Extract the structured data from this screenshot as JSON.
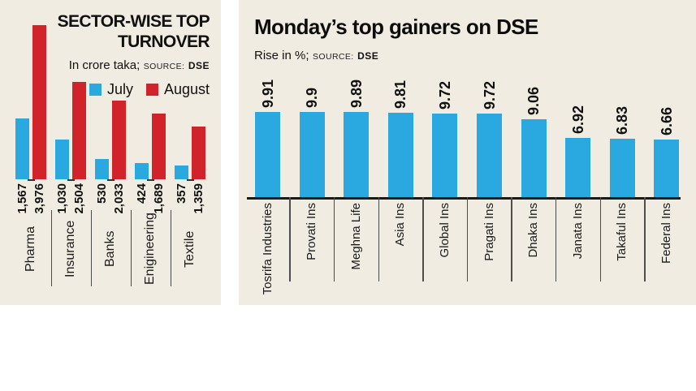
{
  "colors": {
    "page_background": "#ffffff",
    "panel_background": "#f0ece2",
    "july_blue": "#29a9e0",
    "august_red": "#d1232a",
    "text": "#111111",
    "separator": "#4d4d4d",
    "baseline": "#1a1a1a"
  },
  "left_chart": {
    "title_line1": "SECTOR-WISE TOP",
    "title_line2": "TURNOVER",
    "unit_label": "In crore taka;",
    "source_label": "SOURCE:",
    "source_value": "DSE"
  },
  "right_chart": {
    "title": "Monday’s top gainers on DSE",
    "unit_label": "Rise in %;",
    "source_label": "SOURCE:",
    "source_value": "DSE"
  },
  "chart_data": [
    {
      "type": "bar",
      "title": "SECTOR-WISE TOP TURNOVER",
      "subtitle": "In crore taka; SOURCE: DSE",
      "legend_position": "top-right",
      "grid": false,
      "ylim": [
        0,
        4000
      ],
      "categories": [
        "Pharma",
        "Insurance",
        "Banks",
        "Enigineering",
        "Textile"
      ],
      "series": [
        {
          "name": "July",
          "color": "#29a9e0",
          "values": [
            1567,
            1030,
            530,
            424,
            357
          ],
          "labels": [
            "1,567",
            "1,030",
            "530",
            "424",
            "357"
          ]
        },
        {
          "name": "August",
          "color": "#d1232a",
          "values": [
            3976,
            2504,
            2033,
            1689,
            1359
          ],
          "labels": [
            "3,976",
            "2,504",
            "2,033",
            "1,689",
            "1,359"
          ]
        }
      ]
    },
    {
      "type": "bar",
      "title": "Monday’s top gainers on DSE",
      "subtitle": "Rise in %; SOURCE: DSE",
      "grid": false,
      "ylim": [
        0,
        10
      ],
      "bar_color": "#29a9e0",
      "categories": [
        "Tosrifa Industries",
        "Provati Ins",
        "Meghna Life",
        "Asia Ins",
        "Global Ins",
        "Pragati Ins",
        "Dhaka Ins",
        "Janata Ins",
        "Takaful Ins",
        "Federal Ins"
      ],
      "values": [
        9.91,
        9.9,
        9.89,
        9.81,
        9.72,
        9.72,
        9.06,
        6.92,
        6.83,
        6.66
      ],
      "value_labels": [
        "9.91",
        "9.9",
        "9.89",
        "9.81",
        "9.72",
        "9.72",
        "9.06",
        "6.92",
        "6.83",
        "6.66"
      ]
    }
  ]
}
